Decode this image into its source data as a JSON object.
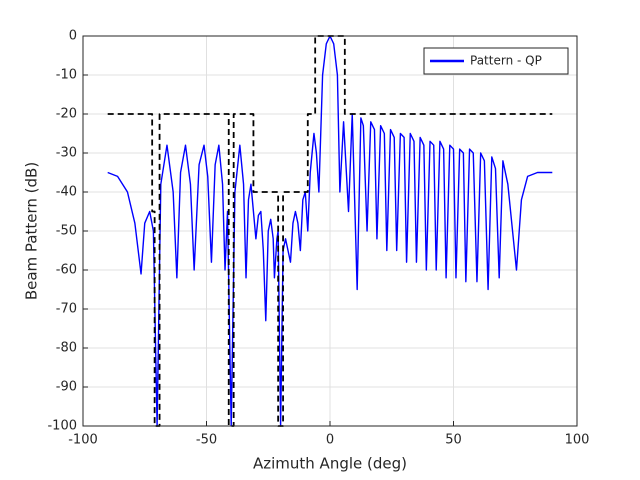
{
  "chart_data": {
    "type": "line",
    "xlabel": "Azimuth Angle (deg)",
    "ylabel": "Beam Pattern (dB)",
    "xlim": [
      -100,
      100
    ],
    "xticks": [
      -100,
      -50,
      0,
      50,
      100
    ],
    "ylim": [
      -100,
      0
    ],
    "yticks": [
      -100,
      -90,
      -80,
      -70,
      -60,
      -50,
      -40,
      -30,
      -20,
      -10,
      0
    ],
    "grid": true,
    "legend": "upper right",
    "series": [
      {
        "name": "Pattern - QP",
        "color": "#0000ff",
        "dashed": false,
        "x": [
          -90,
          -86,
          -82,
          -79,
          -76.5,
          -75,
          -73,
          -71.5,
          -70,
          -68.5,
          -66,
          -63.5,
          -62,
          -60.5,
          -58.5,
          -56.5,
          -55,
          -53,
          -51,
          -49.5,
          -48,
          -46.5,
          -45,
          -43.5,
          -42.5,
          -41.5,
          -40,
          -38.5,
          -36.5,
          -35,
          -34,
          -33,
          -32,
          -31,
          -30,
          -29,
          -28,
          -27,
          -26,
          -25,
          -24,
          -23,
          -22.5,
          -21.5,
          -21,
          -20,
          -19,
          -18,
          -17,
          -16,
          -15,
          -14,
          -13,
          -12,
          -11,
          -10,
          -9,
          -8,
          -6.5,
          -5.5,
          -4.5,
          -3,
          -1.5,
          0,
          1.5,
          3,
          4,
          5.5,
          7.5,
          9,
          11,
          12.5,
          13.5,
          15,
          16.5,
          18,
          19,
          20.5,
          22,
          23,
          24.5,
          26,
          27,
          28.5,
          30,
          31,
          32.5,
          34,
          35,
          36.5,
          38,
          39,
          40.5,
          42,
          43,
          44.5,
          46,
          47,
          48.5,
          50,
          51,
          52.5,
          54,
          55,
          56.5,
          58,
          59.5,
          61,
          62.5,
          64,
          65.5,
          67,
          68.5,
          70,
          72,
          75.5,
          77.5,
          80,
          84,
          90
        ],
        "values": [
          -35,
          -36,
          -40,
          -48,
          -61,
          -48,
          -45,
          -50,
          -100,
          -38,
          -28,
          -40,
          -62,
          -35,
          -28,
          -38,
          -60,
          -33,
          -28,
          -36,
          -58,
          -33,
          -28,
          -38,
          -60,
          -45,
          -100,
          -40,
          -28,
          -38,
          -62,
          -42,
          -38,
          -45,
          -52,
          -46,
          -45,
          -55,
          -73,
          -50,
          -47,
          -52,
          -62,
          -52,
          -50,
          -100,
          -55,
          -52,
          -55,
          -58,
          -48,
          -45,
          -48,
          -55,
          -42,
          -40,
          -50,
          -35,
          -25,
          -30,
          -40,
          -10,
          -2,
          0,
          -2,
          -10,
          -40,
          -22,
          -45,
          -20,
          -65,
          -21,
          -23,
          -50,
          -22,
          -24,
          -52,
          -23,
          -25,
          -55,
          -24,
          -26,
          -55,
          -25,
          -26,
          -58,
          -25,
          -27,
          -58,
          -26,
          -28,
          -60,
          -27,
          -28,
          -60,
          -27,
          -29,
          -62,
          -28,
          -29,
          -62,
          -29,
          -30,
          -63,
          -29,
          -30,
          -63,
          -30,
          -32,
          -65,
          -31,
          -34,
          -62,
          -32,
          -38,
          -60,
          -42,
          -36,
          -35,
          -35
        ]
      },
      {
        "color": "#000000",
        "dashed": true,
        "x": [
          -90,
          -72,
          -72,
          -71,
          -71,
          -69,
          -69,
          -41,
          -41,
          -39,
          -39,
          -31,
          -31,
          -21,
          -21,
          -19,
          -19,
          -9,
          -9,
          -6,
          -6,
          6,
          6,
          90
        ],
        "values": [
          -20,
          -20,
          -45,
          -45,
          -100,
          -100,
          -20,
          -20,
          -100,
          -100,
          -20,
          -20,
          -40,
          -40,
          -100,
          -100,
          -40,
          -40,
          -20,
          -20,
          0,
          0,
          -20,
          -20
        ]
      }
    ]
  }
}
